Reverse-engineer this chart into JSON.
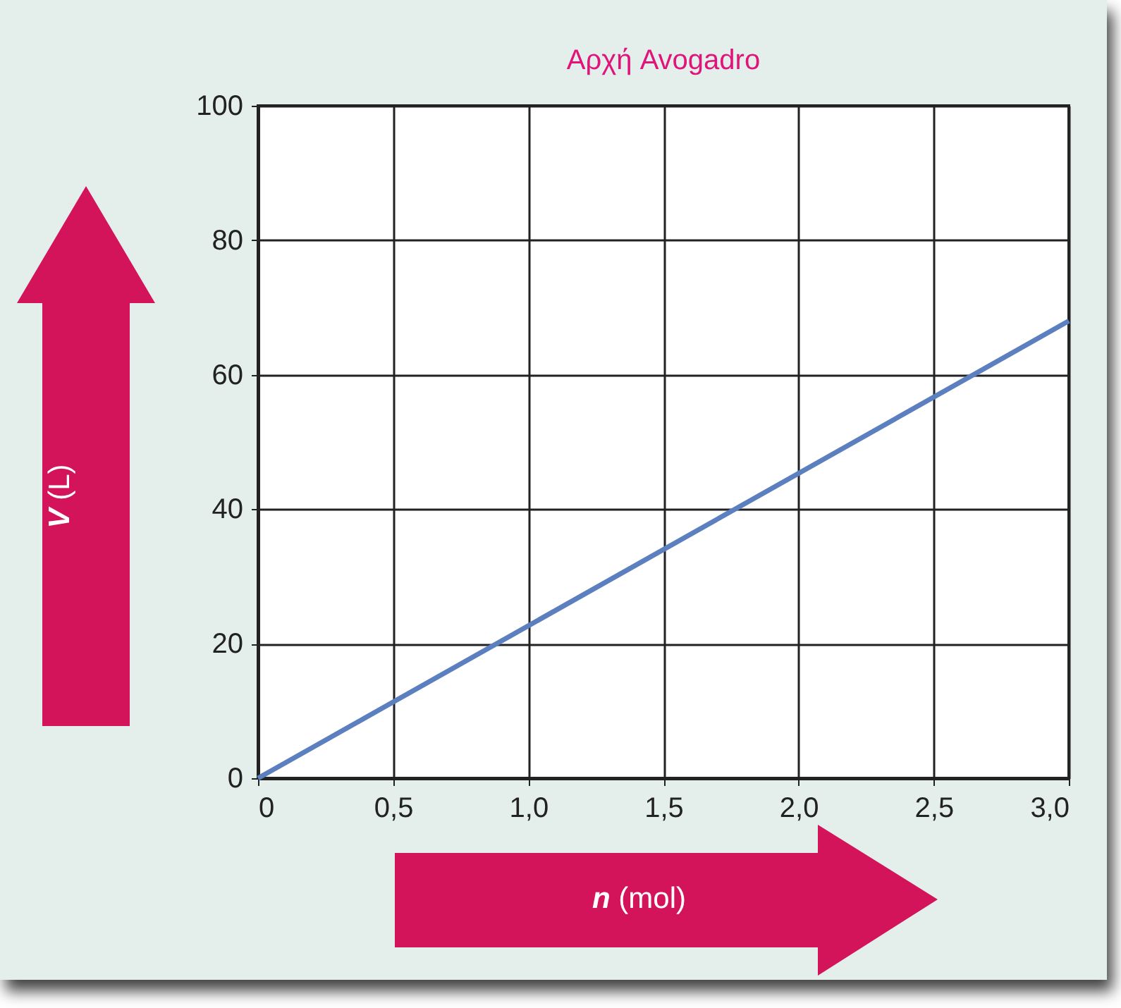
{
  "chart_data": {
    "type": "line",
    "title": "Αρχή Avogadro",
    "xlabel": "n (mol)",
    "ylabel": "V (L)",
    "x": [
      0,
      3.0
    ],
    "series": [
      {
        "color": "#5b7fbf",
        "values": [
          0,
          68
        ]
      }
    ],
    "xlim": [
      0,
      3.0
    ],
    "ylim": [
      0,
      100
    ],
    "xticks": [
      0,
      {
        "value": 0.5,
        "label": "0,5"
      },
      {
        "value": 1,
        "label": "1,0"
      },
      {
        "value": 1.5,
        "label": "1,5"
      },
      {
        "value": 2,
        "label": "2,0"
      },
      {
        "value": 2.5,
        "label": "2,5"
      },
      {
        "value": 3,
        "label": "3,0"
      }
    ],
    "yticks": [
      0,
      20,
      40,
      60,
      80,
      100
    ],
    "grid": true,
    "marker": "none",
    "line_style": "solid"
  }
}
